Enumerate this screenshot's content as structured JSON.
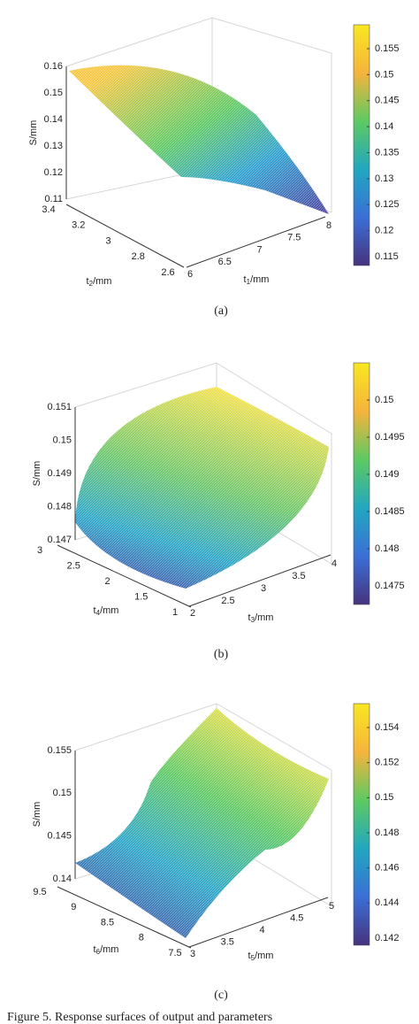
{
  "panels": [
    {
      "z_label": "S/mm",
      "z_ticks": [
        "0.16",
        "0.15",
        "0.14",
        "0.13",
        "0.12",
        "0.11"
      ],
      "y_label": {
        "base": "t",
        "sub": "2",
        "unit": "/mm"
      },
      "y_ticks": [
        "3.4",
        "3.2",
        "3",
        "2.8",
        "2.6"
      ],
      "x_label": {
        "base": "t",
        "sub": "1",
        "unit": "/mm"
      },
      "x_ticks": [
        "6",
        "6.5",
        "7",
        "7.5",
        "8"
      ],
      "colorbar_ticks": [
        "0.155",
        "0.15",
        "0.145",
        "0.14",
        "0.135",
        "0.13",
        "0.125",
        "0.12",
        "0.115"
      ],
      "caption": "(a)"
    },
    {
      "z_label": "S/mm",
      "z_ticks": [
        "0.151",
        "0.15",
        "0.149",
        "0.148",
        "0.147"
      ],
      "y_label": {
        "base": "t",
        "sub": "4",
        "unit": "/mm"
      },
      "y_ticks": [
        "3",
        "2.5",
        "2",
        "1.5",
        "1"
      ],
      "x_label": {
        "base": "t",
        "sub": "3",
        "unit": "/mm"
      },
      "x_ticks": [
        "2",
        "2.5",
        "3",
        "3.5",
        "4"
      ],
      "colorbar_ticks": [
        "0.15",
        "0.1495",
        "0.149",
        "0.1485",
        "0.148",
        "0.1475"
      ],
      "caption": "(b)"
    },
    {
      "z_label": "S/mm",
      "z_ticks": [
        "0.155",
        "0.15",
        "0.145",
        "0.14"
      ],
      "y_label": {
        "base": "t",
        "sub": "6",
        "unit": "/mm"
      },
      "y_ticks": [
        "9.5",
        "9",
        "8.5",
        "8",
        "7.5"
      ],
      "x_label": {
        "base": "t",
        "sub": "5",
        "unit": "/mm"
      },
      "x_ticks": [
        "3",
        "3.5",
        "4",
        "4.5",
        "5"
      ],
      "colorbar_ticks": [
        "0.154",
        "0.152",
        "0.15",
        "0.148",
        "0.146",
        "0.144",
        "0.142"
      ],
      "caption": "(c)"
    }
  ],
  "figure_caption": "Figure 5. Response surfaces of output and parameters"
}
